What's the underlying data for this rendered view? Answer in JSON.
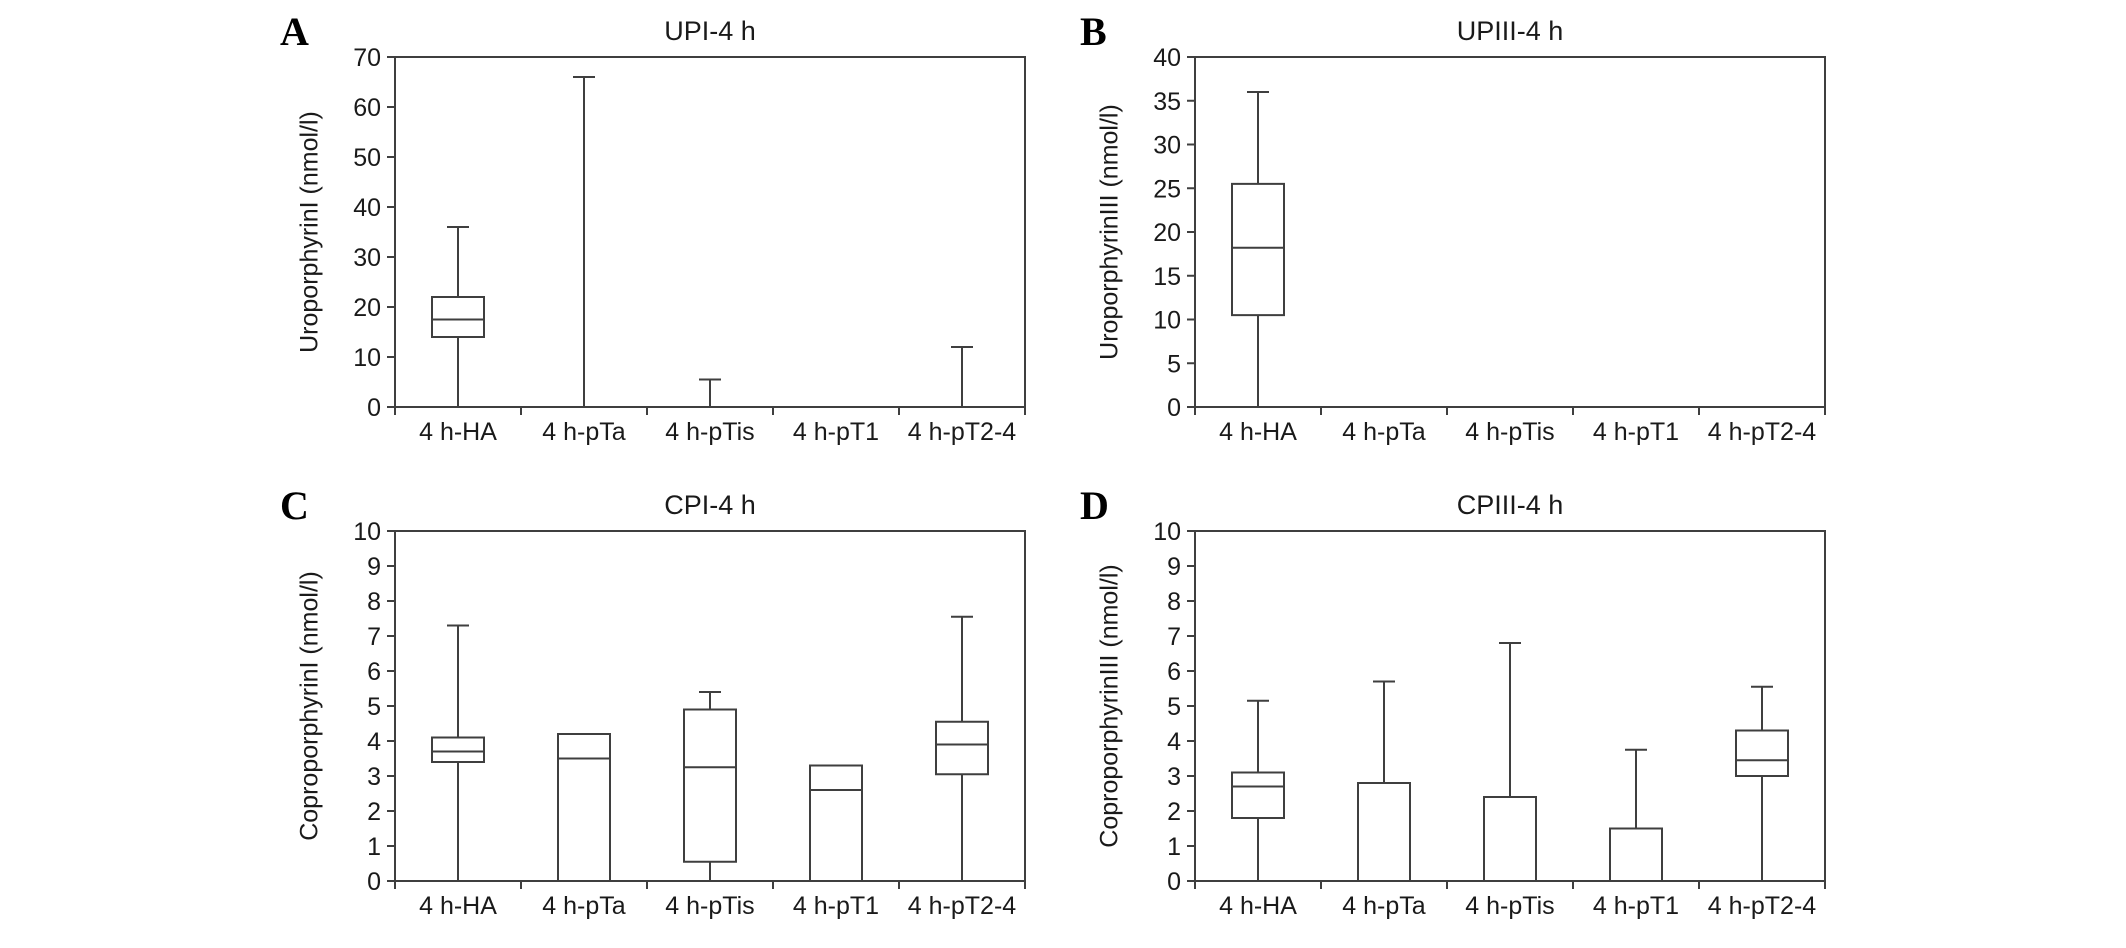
{
  "figure": {
    "background": "#ffffff",
    "line_color": "#3f3f3f",
    "text_color": "#1a1a1a"
  },
  "chart_data": [
    {
      "type": "box",
      "panel": "A",
      "title": "UPI-4 h",
      "ylabel": "UroporphyrinI (nmol/l)",
      "ylim": [
        0,
        70
      ],
      "ytick_step": 10,
      "grid": false,
      "categories": [
        "4 h-HA",
        "4 h-pTa",
        "4 h-pTis",
        "4 h-pT1",
        "4 h-pT2-4"
      ],
      "boxes": [
        {
          "low": 0,
          "q1": 14,
          "median": 17.5,
          "q3": 22,
          "high": 36
        },
        {
          "low": 0,
          "q1": 0,
          "median": 0,
          "q3": 0,
          "high": 66
        },
        {
          "low": 0,
          "q1": 0,
          "median": 0,
          "q3": 0,
          "high": 5.5
        },
        {
          "low": 0,
          "q1": 0,
          "median": 0,
          "q3": 0,
          "high": 0
        },
        {
          "low": 0,
          "q1": 0,
          "median": 0,
          "q3": 0,
          "high": 12
        }
      ]
    },
    {
      "type": "box",
      "panel": "B",
      "title": "UPIII-4 h",
      "ylabel": "UroporphyrinIII (nmol/l)",
      "ylim": [
        0,
        40
      ],
      "ytick_step": 5,
      "grid": false,
      "categories": [
        "4 h-HA",
        "4 h-pTa",
        "4 h-pTis",
        "4 h-pT1",
        "4 h-pT2-4"
      ],
      "boxes": [
        {
          "low": 0,
          "q1": 10.5,
          "median": 18.2,
          "q3": 25.5,
          "high": 36
        },
        {
          "low": 0,
          "q1": 0,
          "median": 0,
          "q3": 0,
          "high": 0
        },
        {
          "low": 0,
          "q1": 0,
          "median": 0,
          "q3": 0,
          "high": 0
        },
        {
          "low": 0,
          "q1": 0,
          "median": 0,
          "q3": 0,
          "high": 0
        },
        {
          "low": 0,
          "q1": 0,
          "median": 0,
          "q3": 0,
          "high": 0
        }
      ]
    },
    {
      "type": "box",
      "panel": "C",
      "title": "CPI-4 h",
      "ylabel": "CoproporphyrinI (nmol/l)",
      "ylim": [
        0,
        10
      ],
      "ytick_step": 1,
      "grid": false,
      "categories": [
        "4 h-HA",
        "4 h-pTa",
        "4 h-pTis",
        "4 h-pT1",
        "4 h-pT2-4"
      ],
      "boxes": [
        {
          "low": 0,
          "q1": 3.4,
          "median": 3.7,
          "q3": 4.1,
          "high": 7.3
        },
        {
          "low": 0,
          "q1": 0,
          "median": 3.5,
          "q3": 4.2,
          "high": 4.2
        },
        {
          "low": 0,
          "q1": 0.55,
          "median": 3.25,
          "q3": 4.9,
          "high": 5.4
        },
        {
          "low": 0,
          "q1": 0,
          "median": 2.6,
          "q3": 3.3,
          "high": 3.3
        },
        {
          "low": 0,
          "q1": 3.05,
          "median": 3.9,
          "q3": 4.55,
          "high": 7.55
        }
      ]
    },
    {
      "type": "box",
      "panel": "D",
      "title": "CPIII-4 h",
      "ylabel": "CoproporphyrinIII (nmol/l)",
      "ylim": [
        0,
        10
      ],
      "ytick_step": 1,
      "grid": false,
      "categories": [
        "4 h-HA",
        "4 h-pTa",
        "4 h-pTis",
        "4 h-pT1",
        "4 h-pT2-4"
      ],
      "boxes": [
        {
          "low": 0,
          "q1": 1.8,
          "median": 2.7,
          "q3": 3.1,
          "high": 5.15
        },
        {
          "low": 0,
          "q1": 0,
          "median": 2.8,
          "q3": 2.8,
          "high": 5.7
        },
        {
          "low": 0,
          "q1": 0,
          "median": 2.4,
          "q3": 2.4,
          "high": 6.8
        },
        {
          "low": 0,
          "q1": 0,
          "median": 1.5,
          "q3": 1.5,
          "high": 3.75
        },
        {
          "low": 0,
          "q1": 3.0,
          "median": 3.45,
          "q3": 4.3,
          "high": 5.55
        }
      ]
    }
  ]
}
